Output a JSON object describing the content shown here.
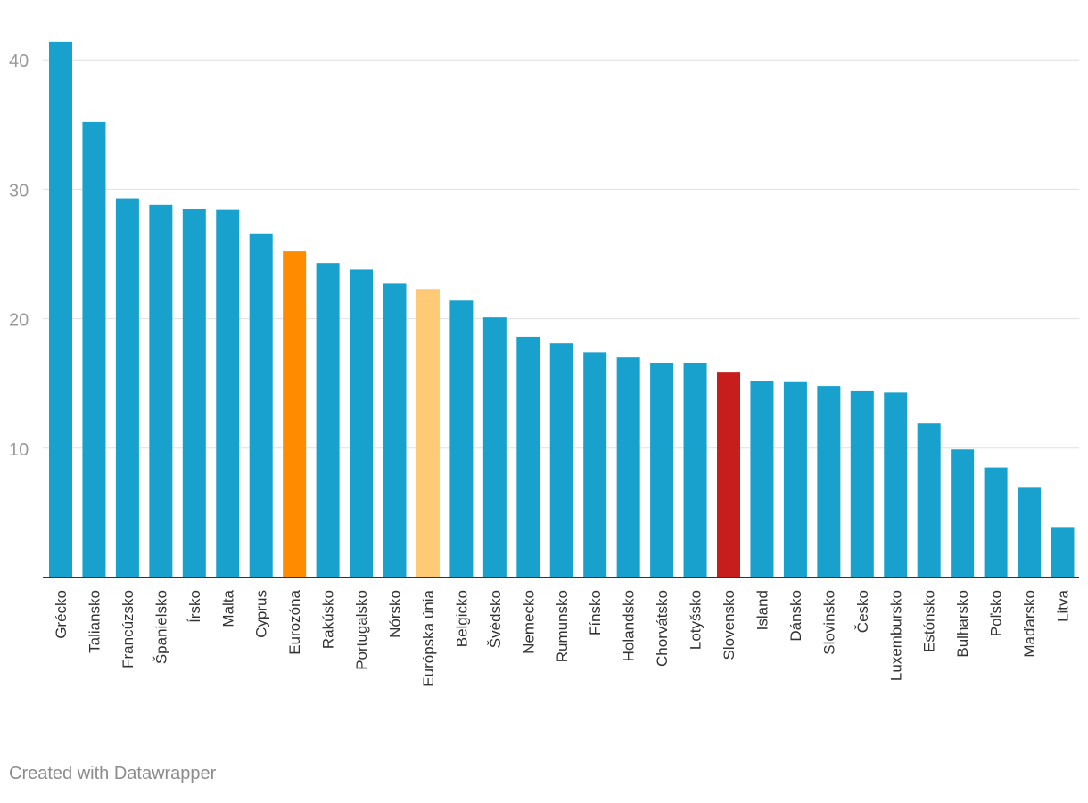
{
  "credit": "Created with Datawrapper",
  "colors": {
    "default": "#18a1cd",
    "eurozone": "#ff8c00",
    "eu": "#ffca76",
    "slovakia": "#c71e1d",
    "grid": "#e0e0e0",
    "axis": "#333333",
    "tick_text": "#999999",
    "label_text": "#333333"
  },
  "chart_data": {
    "type": "bar",
    "title": "",
    "xlabel": "",
    "ylabel": "",
    "ylim": [
      0,
      41.5
    ],
    "yticks": [
      10,
      20,
      30,
      40
    ],
    "grid": true,
    "categories": [
      "Grécko",
      "Taliansko",
      "Francúzsko",
      "Španielsko",
      "Írsko",
      "Malta",
      "Cyprus",
      "Eurozóna",
      "Rakúsko",
      "Portugalsko",
      "Nórsko",
      "Európska únia",
      "Belgicko",
      "Švédsko",
      "Nemecko",
      "Rumunsko",
      "Fínsko",
      "Holandsko",
      "Chorvátsko",
      "Lotyšsko",
      "Slovensko",
      "Island",
      "Dánsko",
      "Slovinsko",
      "Česko",
      "Luxembursko",
      "Estónsko",
      "Bulharsko",
      "Poľsko",
      "Maďarsko",
      "Litva"
    ],
    "values": [
      41.4,
      35.2,
      29.3,
      28.8,
      28.5,
      28.4,
      26.6,
      25.2,
      24.3,
      23.8,
      22.7,
      22.3,
      21.4,
      20.1,
      18.6,
      18.1,
      17.4,
      17.0,
      16.6,
      16.6,
      15.9,
      15.2,
      15.1,
      14.8,
      14.4,
      14.3,
      11.9,
      9.9,
      8.5,
      7.0,
      3.9
    ],
    "highlights": {
      "Eurozóna": "eurozone",
      "Európska únia": "eu",
      "Slovensko": "slovakia"
    }
  }
}
